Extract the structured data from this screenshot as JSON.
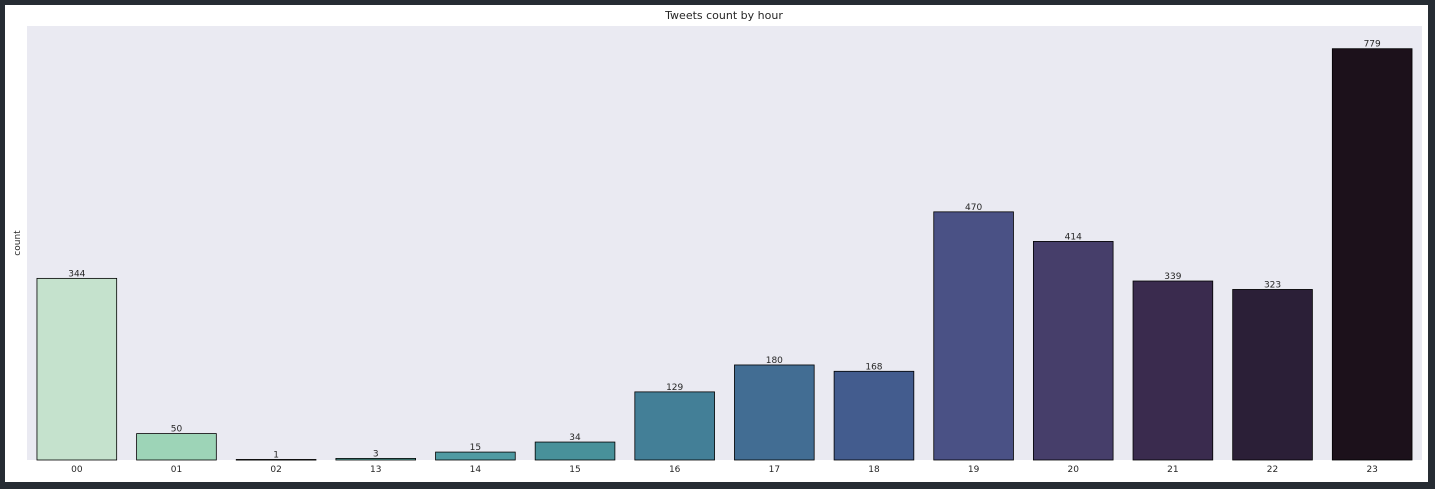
{
  "chart_data": {
    "type": "bar",
    "title": "Tweets count by hour",
    "xlabel": "",
    "ylabel": "count",
    "categories": [
      "00",
      "01",
      "02",
      "13",
      "14",
      "15",
      "16",
      "17",
      "18",
      "19",
      "20",
      "21",
      "22",
      "23"
    ],
    "values": [
      344,
      50,
      1,
      3,
      15,
      34,
      129,
      180,
      168,
      470,
      414,
      339,
      323,
      779
    ],
    "colors": [
      "#c5e2cd",
      "#9dd4b7",
      "#76c6ae",
      "#5db0a6",
      "#4f9aa2",
      "#48919a",
      "#437f97",
      "#426d93",
      "#435c8e",
      "#4a5185",
      "#463e6a",
      "#3a2b4e",
      "#2b1f37",
      "#1c111b"
    ],
    "ylim": [
      0,
      822
    ],
    "grid": false,
    "legend": "none",
    "background": "#eaeaf2"
  }
}
